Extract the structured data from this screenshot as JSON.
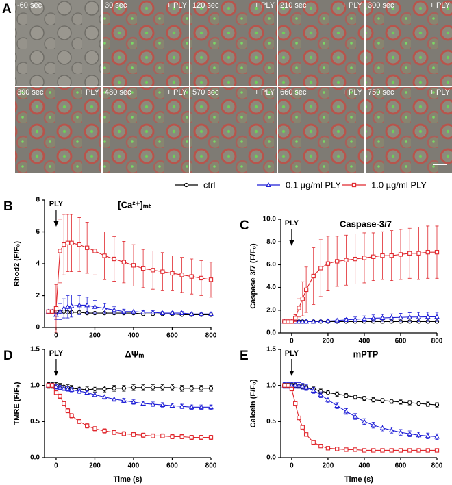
{
  "figure": {
    "panel": "A",
    "tiles": [
      {
        "time": "-60 sec"
      },
      {
        "time": "30 sec",
        "treatment": "+ PLY"
      },
      {
        "time": "120 sec",
        "treatment": "+ PLY"
      },
      {
        "time": "210 sec",
        "treatment": "+ PLY"
      },
      {
        "time": "300 sec",
        "treatment": "+ PLY"
      },
      {
        "time": "390 sec",
        "treatment": "+ PLY"
      },
      {
        "time": "480 sec",
        "treatment": "+ PLY"
      },
      {
        "time": "570 sec",
        "treatment": "+ PLY"
      },
      {
        "time": "660 sec",
        "treatment": "+ PLY"
      },
      {
        "time": "750 sec",
        "treatment": "+ PLY"
      }
    ]
  },
  "chart_data": [
    {
      "type": "line",
      "panel": "B",
      "title": "[Ca²⁺]ₘₜ",
      "y_label": "Rhod2 (F/F₀)",
      "annotation": {
        "text": "PLY",
        "x": 0
      },
      "x": [
        -40,
        -20,
        0,
        20,
        40,
        60,
        80,
        120,
        160,
        200,
        250,
        300,
        350,
        400,
        450,
        500,
        550,
        600,
        650,
        700,
        750,
        800
      ],
      "xlim": [
        -60,
        800
      ],
      "xticks": [
        0,
        200,
        400,
        600,
        800
      ],
      "ylim": [
        0,
        8
      ],
      "yticks": [
        0,
        2,
        4,
        6,
        8
      ],
      "series": [
        {
          "name": "ctrl",
          "color": "#000000",
          "marker": "circle",
          "values": [
            1,
            1,
            1,
            1,
            1,
            0.95,
            0.95,
            0.95,
            0.9,
            0.9,
            0.9,
            0.9,
            0.9,
            0.9,
            0.85,
            0.85,
            0.85,
            0.85,
            0.8,
            0.8,
            0.8,
            0.8
          ],
          "errors": [
            0.05,
            0.05,
            0.05,
            0.05,
            0.05,
            0.05,
            0.05,
            0.05,
            0.05,
            0.05,
            0.05,
            0.05,
            0.05,
            0.05,
            0.05,
            0.05,
            0.05,
            0.05,
            0.05,
            0.05,
            0.05,
            0.05
          ]
        },
        {
          "name": "0.1 µg/ml PLY",
          "color": "#1f1fd6",
          "marker": "triangle",
          "values": [
            1,
            1,
            0.8,
            1.0,
            1.2,
            1.3,
            1.35,
            1.4,
            1.4,
            1.3,
            1.2,
            1.1,
            1.0,
            1.0,
            0.95,
            0.95,
            0.9,
            0.9,
            0.9,
            0.85,
            0.85,
            0.85
          ],
          "errors": [
            0.1,
            0.1,
            0.3,
            0.5,
            0.6,
            0.7,
            0.7,
            0.6,
            0.5,
            0.4,
            0.3,
            0.2,
            0.15,
            0.1,
            0.1,
            0.1,
            0.1,
            0.1,
            0.1,
            0.1,
            0.1,
            0.1
          ]
        },
        {
          "name": "1.0 µg/ml PLY",
          "color": "#e0282e",
          "marker": "square",
          "values": [
            1,
            1,
            1.2,
            4.8,
            5.2,
            5.3,
            5.3,
            5.2,
            5.0,
            4.8,
            4.5,
            4.3,
            4.1,
            3.9,
            3.7,
            3.6,
            3.5,
            3.4,
            3.3,
            3.2,
            3.1,
            3.0
          ],
          "errors": [
            0,
            0,
            1.5,
            2,
            1.9,
            1.8,
            1.8,
            1.7,
            1.6,
            1.5,
            1.5,
            1.4,
            1.3,
            1.3,
            1.2,
            1.2,
            1.2,
            1.1,
            1.1,
            1.1,
            1.1,
            1.1
          ]
        }
      ]
    },
    {
      "type": "line",
      "panel": "C",
      "title": "Caspase-3/7",
      "y_label": "Caspase 3/7 (F/F₀)",
      "annotation": {
        "text": "PLY",
        "x": 0
      },
      "x": [
        -40,
        -20,
        0,
        20,
        40,
        60,
        80,
        120,
        160,
        200,
        250,
        300,
        350,
        400,
        450,
        500,
        550,
        600,
        650,
        700,
        750,
        800
      ],
      "xlim": [
        -60,
        800
      ],
      "xticks": [
        0,
        200,
        400,
        600,
        800
      ],
      "ylim": [
        0,
        10
      ],
      "yticks": [
        {
          "value": 0,
          "label": "0.0"
        },
        {
          "value": 2,
          "label": "2.0"
        },
        {
          "value": 4,
          "label": "4.0"
        },
        {
          "value": 6,
          "label": "6.0"
        },
        {
          "value": 8,
          "label": "8.0"
        },
        {
          "value": 10,
          "label": "10.0"
        }
      ],
      "series": [
        {
          "color": "#000000",
          "marker": "circle",
          "values": [
            1,
            1,
            1,
            1,
            1,
            1,
            1,
            1,
            1,
            1,
            1,
            1,
            1,
            1,
            1,
            1,
            1,
            1,
            1,
            1,
            1,
            1
          ],
          "errors": [
            0.05,
            0.05,
            0.05,
            0.05,
            0.05,
            0.05,
            0.05,
            0.05,
            0.05,
            0.05,
            0.05,
            0.05,
            0.05,
            0.05,
            0.05,
            0.05,
            0.05,
            0.05,
            0.05,
            0.05,
            0.05,
            0.05
          ]
        },
        {
          "color": "#1f1fd6",
          "marker": "triangle",
          "values": [
            1,
            1,
            1,
            1,
            1,
            1,
            1,
            1,
            1.02,
            1.05,
            1.1,
            1.15,
            1.2,
            1.25,
            1.3,
            1.32,
            1.35,
            1.37,
            1.4,
            1.4,
            1.42,
            1.42
          ],
          "errors": [
            0.02,
            0.02,
            0.02,
            0.02,
            0.02,
            0.02,
            0.02,
            0.02,
            0.05,
            0.08,
            0.1,
            0.15,
            0.2,
            0.25,
            0.28,
            0.3,
            0.32,
            0.35,
            0.38,
            0.4,
            0.4,
            0.4
          ]
        },
        {
          "color": "#e0282e",
          "marker": "square",
          "values": [
            1,
            1,
            1,
            1.3,
            2.2,
            3.0,
            3.8,
            5.0,
            5.7,
            6.1,
            6.3,
            6.4,
            6.5,
            6.6,
            6.7,
            6.8,
            6.8,
            6.9,
            7.0,
            7.0,
            7.1,
            7.1
          ],
          "errors": [
            0,
            0,
            0,
            0.3,
            0.8,
            1.5,
            2,
            2.5,
            2.5,
            2.4,
            2.2,
            2.2,
            2.2,
            2.2,
            2.1,
            2.1,
            2.2,
            2.2,
            2.2,
            2.3,
            2.3,
            2.3
          ]
        }
      ]
    },
    {
      "type": "line",
      "panel": "D",
      "title": "ΔΨₘ",
      "y_label": "TMRE (F/F₀)",
      "x_label": "Time (s)",
      "annotation": {
        "text": "PLY",
        "x": 0
      },
      "x": [
        -40,
        -20,
        0,
        20,
        40,
        60,
        80,
        120,
        160,
        200,
        250,
        300,
        350,
        400,
        450,
        500,
        550,
        600,
        650,
        700,
        750,
        800
      ],
      "xlim": [
        -60,
        800
      ],
      "xticks": [
        0,
        200,
        400,
        600,
        800
      ],
      "ylim": [
        0,
        1.5
      ],
      "yticks": [
        {
          "value": 0,
          "label": "0.0"
        },
        {
          "value": 0.5,
          "label": "0.5"
        },
        {
          "value": 1,
          "label": "1.0"
        },
        {
          "value": 1.5,
          "label": "1.5"
        }
      ],
      "series": [
        {
          "color": "#000000",
          "marker": "circle",
          "values": [
            1.0,
            1.0,
            1.0,
            0.99,
            0.98,
            0.97,
            0.96,
            0.95,
            0.94,
            0.95,
            0.95,
            0.96,
            0.96,
            0.97,
            0.97,
            0.97,
            0.97,
            0.97,
            0.96,
            0.96,
            0.96,
            0.96
          ],
          "errors": [
            0.04,
            0.04,
            0.04,
            0.04,
            0.04,
            0.04,
            0.04,
            0.04,
            0.04,
            0.04,
            0.04,
            0.04,
            0.04,
            0.04,
            0.04,
            0.04,
            0.04,
            0.04,
            0.04,
            0.04,
            0.04,
            0.04
          ]
        },
        {
          "color": "#1f1fd6",
          "marker": "triangle",
          "values": [
            1,
            1,
            0.98,
            0.97,
            0.96,
            0.95,
            0.94,
            0.92,
            0.9,
            0.87,
            0.84,
            0.81,
            0.79,
            0.77,
            0.75,
            0.74,
            0.73,
            0.72,
            0.71,
            0.7,
            0.7,
            0.7
          ],
          "errors": [
            0.03,
            0.03,
            0.03,
            0.03,
            0.03,
            0.03,
            0.03,
            0.03,
            0.03,
            0.03,
            0.03,
            0.03,
            0.03,
            0.03,
            0.03,
            0.03,
            0.03,
            0.03,
            0.03,
            0.03,
            0.03,
            0.03
          ]
        },
        {
          "color": "#e0282e",
          "marker": "square",
          "values": [
            1,
            1,
            0.9,
            0.85,
            0.75,
            0.65,
            0.58,
            0.5,
            0.44,
            0.4,
            0.37,
            0.35,
            0.33,
            0.32,
            0.31,
            0.3,
            0.3,
            0.29,
            0.29,
            0.28,
            0.28,
            0.28
          ],
          "errors": [
            0.03,
            0.03,
            0.03,
            0.03,
            0.03,
            0.03,
            0.03,
            0.03,
            0.03,
            0.03,
            0.03,
            0.03,
            0.03,
            0.03,
            0.03,
            0.03,
            0.03,
            0.03,
            0.03,
            0.03,
            0.03,
            0.03
          ]
        }
      ]
    },
    {
      "type": "line",
      "panel": "E",
      "title": "mPTP",
      "y_label": "Calcein (F/F₀)",
      "x_label": "Time  (s)",
      "annotation": {
        "text": "PLY",
        "x": 0
      },
      "x": [
        -40,
        -20,
        0,
        20,
        40,
        60,
        80,
        120,
        160,
        200,
        250,
        300,
        350,
        400,
        450,
        500,
        550,
        600,
        650,
        700,
        750,
        800
      ],
      "xlim": [
        -60,
        800
      ],
      "xticks": [
        0,
        200,
        400,
        600,
        800
      ],
      "ylim": [
        0,
        1.5
      ],
      "yticks": [
        {
          "value": 0,
          "label": "0.0"
        },
        {
          "value": 0.5,
          "label": "0.5"
        },
        {
          "value": 1,
          "label": "1.0"
        },
        {
          "value": 1.5,
          "label": "1.5"
        }
      ],
      "series": [
        {
          "color": "#000000",
          "marker": "circle",
          "values": [
            1.0,
            1.0,
            1.0,
            1.0,
            0.99,
            0.98,
            0.97,
            0.95,
            0.92,
            0.9,
            0.88,
            0.86,
            0.84,
            0.82,
            0.8,
            0.79,
            0.78,
            0.77,
            0.76,
            0.75,
            0.74,
            0.73
          ],
          "errors": [
            0.03,
            0.03,
            0.03,
            0.03,
            0.03,
            0.03,
            0.03,
            0.03,
            0.03,
            0.03,
            0.03,
            0.03,
            0.03,
            0.03,
            0.03,
            0.03,
            0.03,
            0.03,
            0.03,
            0.03,
            0.03,
            0.03
          ]
        },
        {
          "color": "#1f1fd6",
          "marker": "triangle",
          "values": [
            1,
            1,
            1,
            1,
            1,
            0.99,
            0.97,
            0.93,
            0.87,
            0.8,
            0.72,
            0.64,
            0.57,
            0.5,
            0.45,
            0.41,
            0.38,
            0.35,
            0.33,
            0.31,
            0.3,
            0.29
          ],
          "errors": [
            0.04,
            0.04,
            0.04,
            0.04,
            0.04,
            0.04,
            0.04,
            0.04,
            0.04,
            0.04,
            0.04,
            0.04,
            0.04,
            0.04,
            0.04,
            0.04,
            0.04,
            0.04,
            0.04,
            0.04,
            0.04,
            0.04
          ]
        },
        {
          "color": "#e0282e",
          "marker": "square",
          "values": [
            1,
            1,
            0.95,
            0.75,
            0.55,
            0.42,
            0.32,
            0.21,
            0.16,
            0.13,
            0.12,
            0.11,
            0.11,
            0.1,
            0.1,
            0.1,
            0.1,
            0.1,
            0.1,
            0.1,
            0.1,
            0.1
          ],
          "errors": [
            0.02,
            0.02,
            0.02,
            0.02,
            0.02,
            0.02,
            0.02,
            0.02,
            0.02,
            0.02,
            0.02,
            0.02,
            0.02,
            0.02,
            0.02,
            0.02,
            0.02,
            0.02,
            0.02,
            0.02,
            0.02,
            0.02
          ]
        }
      ]
    }
  ]
}
